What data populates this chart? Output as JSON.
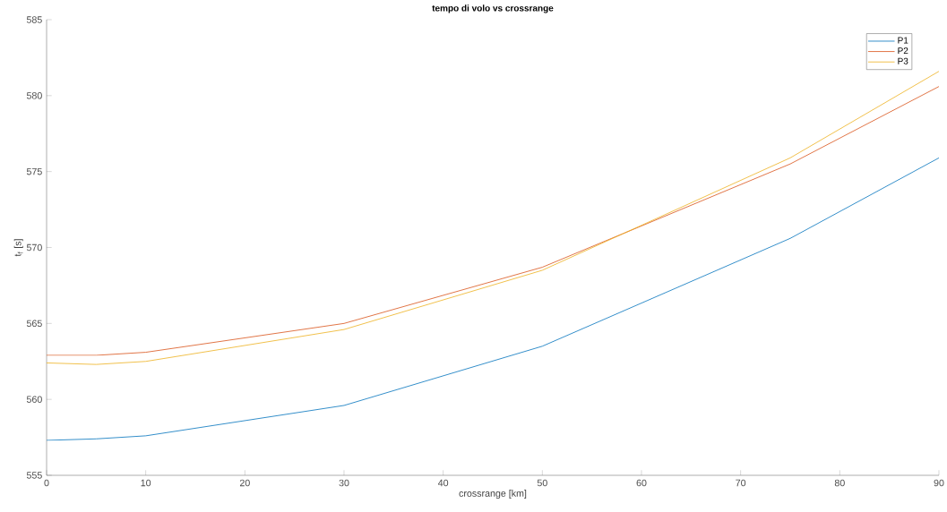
{
  "chart_data": {
    "type": "line",
    "title": "tempo di volo vs crossrange",
    "xlabel": "crossrange [km]",
    "ylabel": "t$_{f}$ [s]",
    "x": [
      0,
      5,
      10,
      30,
      50,
      75,
      90
    ],
    "series": [
      {
        "name": "P1",
        "color": "#0072bd",
        "values": [
          557.3,
          557.4,
          557.6,
          559.6,
          563.5,
          570.6,
          575.9
        ]
      },
      {
        "name": "P2",
        "color": "#d95319",
        "values": [
          562.9,
          562.9,
          563.1,
          565.0,
          568.7,
          575.5,
          580.6
        ]
      },
      {
        "name": "P3",
        "color": "#edb120",
        "values": [
          562.4,
          562.3,
          562.5,
          564.6,
          568.5,
          575.9,
          581.6
        ]
      }
    ],
    "xlim": [
      0,
      90
    ],
    "ylim": [
      555,
      585
    ],
    "xticks": [
      0,
      10,
      20,
      30,
      40,
      50,
      60,
      70,
      80,
      90
    ],
    "yticks": [
      555,
      560,
      565,
      570,
      575,
      580,
      585
    ],
    "legend": "top right",
    "grid": false,
    "marker": "none",
    "line_style": "solid"
  }
}
